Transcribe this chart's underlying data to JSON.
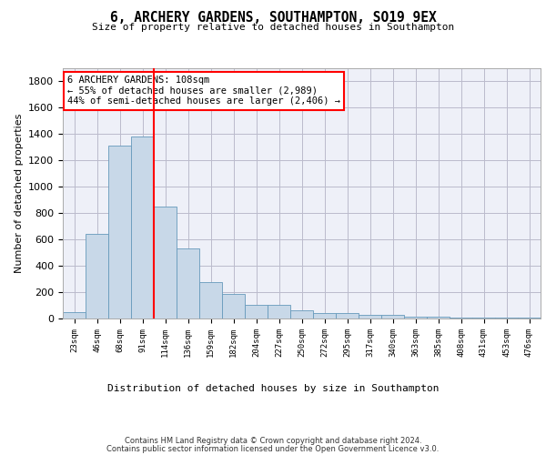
{
  "title1": "6, ARCHERY GARDENS, SOUTHAMPTON, SO19 9EX",
  "title2": "Size of property relative to detached houses in Southampton",
  "xlabel": "Distribution of detached houses by size in Southampton",
  "ylabel": "Number of detached properties",
  "categories": [
    "23sqm",
    "46sqm",
    "68sqm",
    "91sqm",
    "114sqm",
    "136sqm",
    "159sqm",
    "182sqm",
    "204sqm",
    "227sqm",
    "250sqm",
    "272sqm",
    "295sqm",
    "317sqm",
    "340sqm",
    "363sqm",
    "385sqm",
    "408sqm",
    "431sqm",
    "453sqm",
    "476sqm"
  ],
  "values": [
    50,
    640,
    1310,
    1380,
    850,
    530,
    275,
    185,
    105,
    105,
    65,
    40,
    40,
    30,
    25,
    15,
    15,
    10,
    10,
    10,
    10
  ],
  "bar_color": "#c8d8e8",
  "bar_edge_color": "#6699bb",
  "bar_width": 1.0,
  "vline_color": "red",
  "vline_x": 4.0,
  "annotation_line1": "6 ARCHERY GARDENS: 108sqm",
  "annotation_line2": "← 55% of detached houses are smaller (2,989)",
  "annotation_line3": "44% of semi-detached houses are larger (2,406) →",
  "annotation_box_color": "white",
  "annotation_box_edge_color": "red",
  "ylim": [
    0,
    1900
  ],
  "yticks": [
    0,
    200,
    400,
    600,
    800,
    1000,
    1200,
    1400,
    1600,
    1800
  ],
  "grid_color": "#bbbbcc",
  "bg_color": "#eef0f8",
  "footer1": "Contains HM Land Registry data © Crown copyright and database right 2024.",
  "footer2": "Contains public sector information licensed under the Open Government Licence v3.0."
}
